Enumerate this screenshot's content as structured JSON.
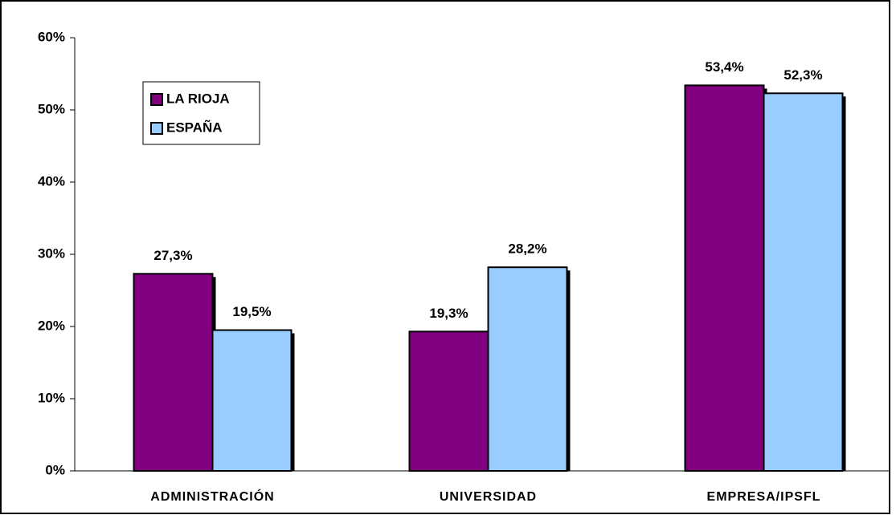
{
  "chart_data": {
    "type": "bar",
    "categories": [
      "ADMINISTRACIÓN",
      "UNIVERSIDAD",
      "EMPRESA/IPSFL"
    ],
    "series": [
      {
        "name": "LA RIOJA",
        "color": "#800080",
        "values": [
          27.3,
          19.3,
          53.4
        ],
        "value_labels": [
          "27,3%",
          "19,3%",
          "53,4%"
        ]
      },
      {
        "name": "ESPAÑA",
        "color": "#99ccff",
        "values": [
          19.5,
          28.2,
          52.3
        ],
        "value_labels": [
          "19,5%",
          "28,2%",
          "52,3%"
        ]
      }
    ],
    "ylim": [
      0,
      60
    ],
    "yticks": [
      {
        "value": 0,
        "label": "0%"
      },
      {
        "value": 10,
        "label": "10%"
      },
      {
        "value": 20,
        "label": "20%"
      },
      {
        "value": 30,
        "label": "30%"
      },
      {
        "value": 40,
        "label": "40%"
      },
      {
        "value": 50,
        "label": "50%"
      },
      {
        "value": 60,
        "label": "60%"
      }
    ],
    "grid": false,
    "legend": "upper-left"
  }
}
